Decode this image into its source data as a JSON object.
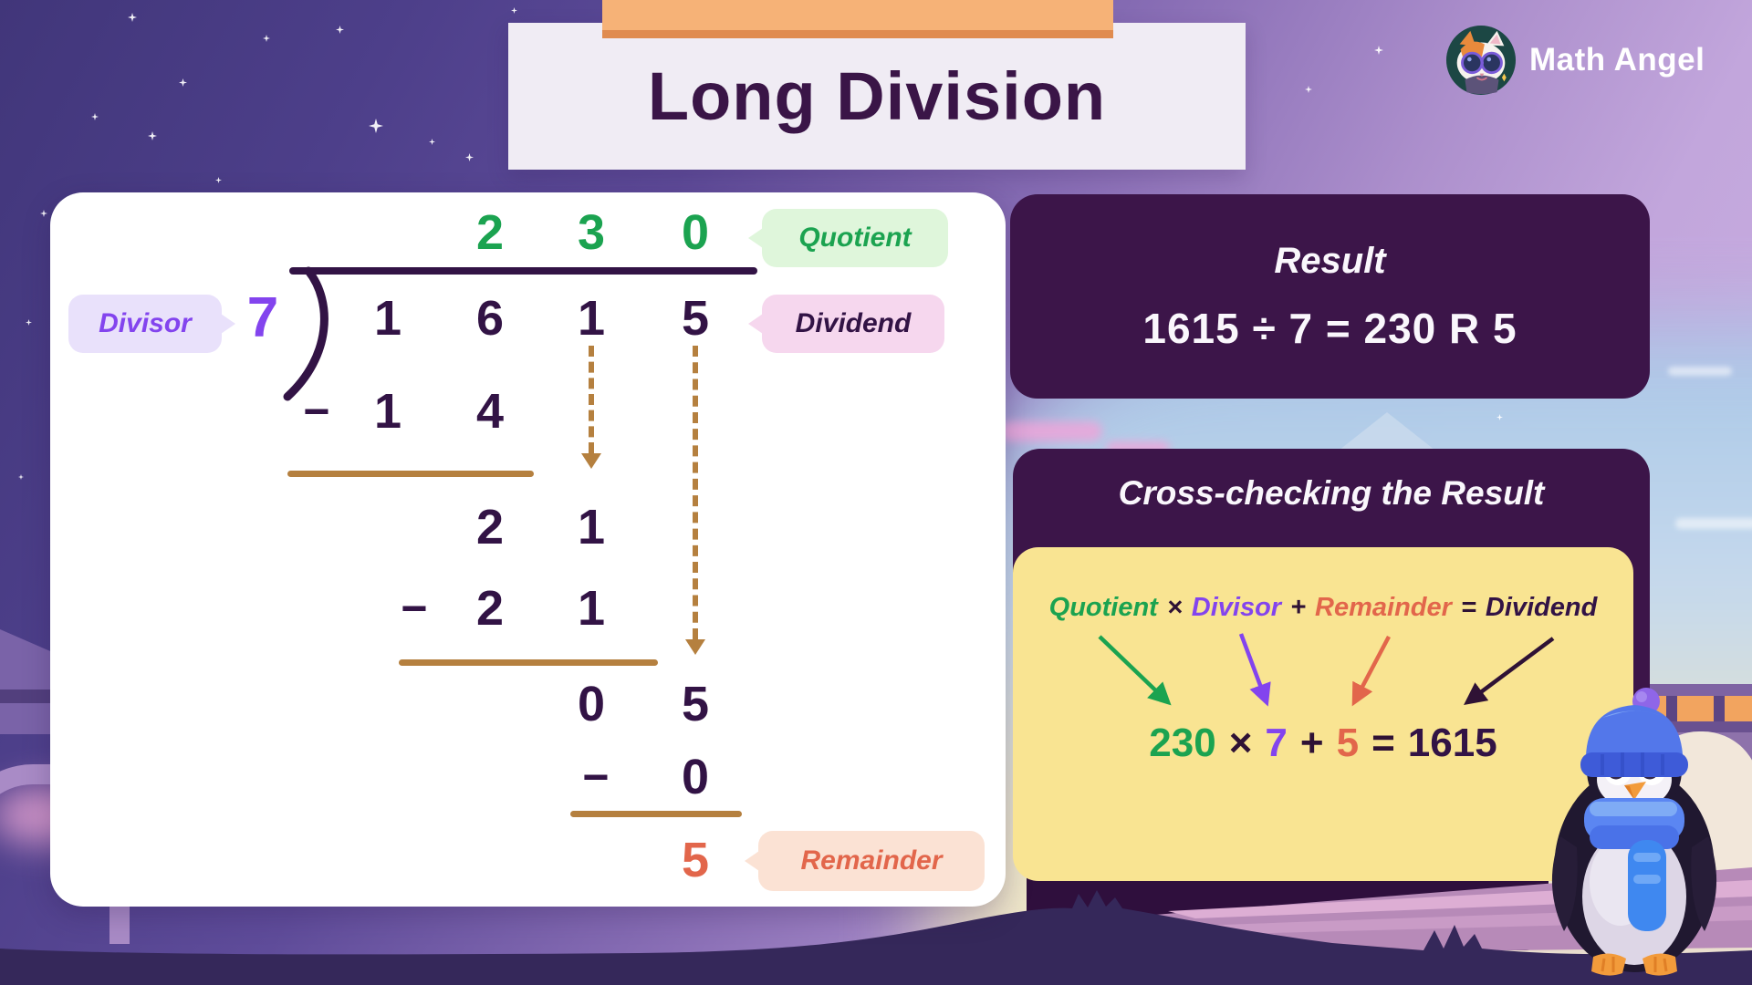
{
  "brand": {
    "name": "Math Angel"
  },
  "title": "Long Division",
  "division": {
    "quotient": [
      "2",
      "3",
      "0"
    ],
    "dividend": [
      "1",
      "6",
      "1",
      "5"
    ],
    "divisor": "7",
    "minus": "−",
    "rows": {
      "sub1": [
        "1",
        "4"
      ],
      "res1": [
        "2",
        "1"
      ],
      "sub2": [
        "2",
        "1"
      ],
      "res2": [
        "0",
        "5"
      ],
      "sub3": [
        "0"
      ],
      "remainder": "5"
    },
    "labels": {
      "quotient": "Quotient",
      "dividend": "Dividend",
      "divisor": "Divisor",
      "remainder": "Remainder"
    }
  },
  "result_panel": {
    "heading": "Result",
    "equation": "1615 ÷ 7 = 230 R 5"
  },
  "crosscheck": {
    "heading": "Cross-checking the Result",
    "formula": [
      {
        "text": "Quotient",
        "color": "#1ba350"
      },
      {
        "text": "×",
        "color": "#2f1235"
      },
      {
        "text": "Divisor",
        "color": "#8344ee"
      },
      {
        "text": "+",
        "color": "#2f1235"
      },
      {
        "text": "Remainder",
        "color": "#e2664b"
      },
      {
        "text": "=",
        "color": "#2f1235"
      },
      {
        "text": "Dividend",
        "color": "#321345"
      }
    ],
    "equation": [
      {
        "text": "230",
        "color": "#1ba350"
      },
      {
        "text": "×",
        "color": "#2f1235"
      },
      {
        "text": "7",
        "color": "#8344ee"
      },
      {
        "text": "+",
        "color": "#2f1235"
      },
      {
        "text": "5",
        "color": "#e2664b"
      },
      {
        "text": "=",
        "color": "#2f1235"
      },
      {
        "text": "1615",
        "color": "#321345"
      }
    ]
  },
  "colors": {
    "quotient_green": "#1ba350",
    "divisor_purple": "#8344ee",
    "remainder_coral": "#e2664b",
    "ink_dark_purple": "#321345",
    "carry_brown": "#b5803f",
    "panel_plum": "#3c1549",
    "card_yellow": "#f9e492",
    "tab_orange": "#f6b277"
  }
}
